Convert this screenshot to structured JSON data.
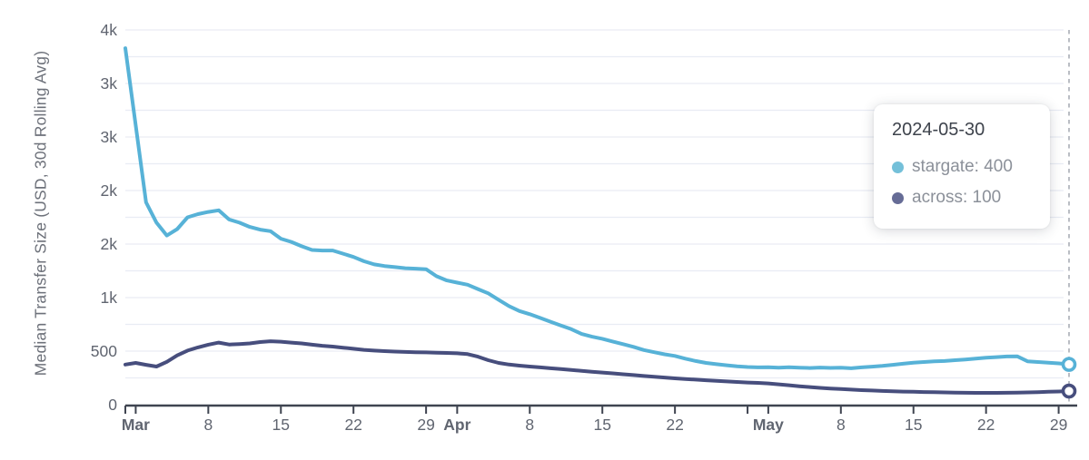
{
  "page": {
    "background": "#ffffff"
  },
  "tooltip": {
    "title": "2024-05-30",
    "rows": [
      {
        "series": "stargate",
        "value": "400",
        "text": "stargate: 400",
        "color": "#74c0d9"
      },
      {
        "series": "across",
        "value": "100",
        "text": "across: 100",
        "color": "#666c96"
      }
    ]
  },
  "chart_data": {
    "type": "line",
    "title": "",
    "xlabel": "",
    "ylabel": "Median Transfer Size (USD, 30d Rolling Avg)",
    "grid": "on",
    "legend_position": "tooltip-overlay",
    "y_max": 3500,
    "y_min": 0,
    "grid_step": 250,
    "y_ticks": [
      {
        "value": 0,
        "label": "0"
      },
      {
        "value": 500,
        "label": "500"
      },
      {
        "value": 1000,
        "label": "1k"
      },
      {
        "value": 1500,
        "label": "2k"
      },
      {
        "value": 2000,
        "label": "2k"
      },
      {
        "value": 2500,
        "label": "3k"
      },
      {
        "value": 3000,
        "label": "3k"
      },
      {
        "value": 3500,
        "label": "4k"
      }
    ],
    "x_ticks": [
      {
        "i": 0,
        "label": "",
        "bold": false
      },
      {
        "i": 1,
        "label": "Mar",
        "bold": true
      },
      {
        "i": 8,
        "label": "8",
        "bold": false
      },
      {
        "i": 15,
        "label": "15",
        "bold": false
      },
      {
        "i": 22,
        "label": "22",
        "bold": false
      },
      {
        "i": 29,
        "label": "29",
        "bold": false
      },
      {
        "i": 32,
        "label": "Apr",
        "bold": true
      },
      {
        "i": 39,
        "label": "8",
        "bold": false
      },
      {
        "i": 46,
        "label": "15",
        "bold": false
      },
      {
        "i": 53,
        "label": "22",
        "bold": false
      },
      {
        "i": 60,
        "label": "",
        "bold": false
      },
      {
        "i": 62,
        "label": "May",
        "bold": true
      },
      {
        "i": 69,
        "label": "8",
        "bold": false
      },
      {
        "i": 76,
        "label": "15",
        "bold": false
      },
      {
        "i": 83,
        "label": "22",
        "bold": false
      },
      {
        "i": 90,
        "label": "29",
        "bold": false
      }
    ],
    "crosshair_date": "2024-05-30",
    "dates": [
      "2024-02-29",
      "2024-03-01",
      "2024-03-02",
      "2024-03-03",
      "2024-03-04",
      "2024-03-05",
      "2024-03-06",
      "2024-03-07",
      "2024-03-08",
      "2024-03-09",
      "2024-03-10",
      "2024-03-11",
      "2024-03-12",
      "2024-03-13",
      "2024-03-14",
      "2024-03-15",
      "2024-03-16",
      "2024-03-17",
      "2024-03-18",
      "2024-03-19",
      "2024-03-20",
      "2024-03-21",
      "2024-03-22",
      "2024-03-23",
      "2024-03-24",
      "2024-03-25",
      "2024-03-26",
      "2024-03-27",
      "2024-03-28",
      "2024-03-29",
      "2024-03-30",
      "2024-03-31",
      "2024-04-01",
      "2024-04-02",
      "2024-04-03",
      "2024-04-04",
      "2024-04-05",
      "2024-04-06",
      "2024-04-07",
      "2024-04-08",
      "2024-04-09",
      "2024-04-10",
      "2024-04-11",
      "2024-04-12",
      "2024-04-13",
      "2024-04-14",
      "2024-04-15",
      "2024-04-16",
      "2024-04-17",
      "2024-04-18",
      "2024-04-19",
      "2024-04-20",
      "2024-04-21",
      "2024-04-22",
      "2024-04-23",
      "2024-04-24",
      "2024-04-25",
      "2024-04-26",
      "2024-04-27",
      "2024-04-28",
      "2024-04-29",
      "2024-04-30",
      "2024-05-01",
      "2024-05-02",
      "2024-05-03",
      "2024-05-04",
      "2024-05-05",
      "2024-05-06",
      "2024-05-07",
      "2024-05-08",
      "2024-05-09",
      "2024-05-10",
      "2024-05-11",
      "2024-05-12",
      "2024-05-13",
      "2024-05-14",
      "2024-05-15",
      "2024-05-16",
      "2024-05-17",
      "2024-05-18",
      "2024-05-19",
      "2024-05-20",
      "2024-05-21",
      "2024-05-22",
      "2024-05-23",
      "2024-05-24",
      "2024-05-25",
      "2024-05-26",
      "2024-05-27",
      "2024-05-28",
      "2024-05-29",
      "2024-05-30"
    ],
    "series": [
      {
        "name": "stargate",
        "color": "#57b2d7",
        "values": [
          3330,
          2610,
          1890,
          1700,
          1580,
          1640,
          1750,
          1780,
          1800,
          1815,
          1730,
          1700,
          1660,
          1635,
          1620,
          1550,
          1520,
          1480,
          1445,
          1440,
          1440,
          1410,
          1380,
          1340,
          1310,
          1295,
          1285,
          1275,
          1270,
          1265,
          1200,
          1160,
          1140,
          1120,
          1080,
          1040,
          980,
          920,
          875,
          845,
          810,
          775,
          740,
          705,
          660,
          635,
          615,
          590,
          565,
          540,
          510,
          490,
          470,
          455,
          430,
          408,
          390,
          378,
          368,
          358,
          352,
          348,
          350,
          345,
          350,
          346,
          342,
          347,
          343,
          345,
          340,
          348,
          355,
          362,
          372,
          382,
          392,
          398,
          404,
          408,
          415,
          422,
          430,
          438,
          444,
          450,
          452,
          405,
          398,
          392,
          386,
          376
        ]
      },
      {
        "name": "across",
        "color": "#474e7d",
        "values": [
          375,
          390,
          372,
          356,
          400,
          460,
          505,
          535,
          560,
          580,
          562,
          566,
          572,
          585,
          592,
          588,
          580,
          572,
          560,
          550,
          542,
          532,
          522,
          512,
          505,
          500,
          496,
          492,
          490,
          488,
          486,
          483,
          480,
          472,
          448,
          415,
          390,
          375,
          364,
          356,
          348,
          340,
          332,
          324,
          316,
          308,
          300,
          292,
          284,
          276,
          268,
          260,
          253,
          246,
          240,
          234,
          228,
          222,
          217,
          212,
          207,
          203,
          198,
          190,
          181,
          172,
          164,
          157,
          151,
          146,
          141,
          136,
          132,
          128,
          125,
          122,
          120,
          118,
          116,
          114,
          112,
          111,
          110,
          110,
          110,
          111,
          112,
          114,
          117,
          120,
          123,
          127
        ]
      }
    ],
    "end_values_displayed": {
      "stargate": "400",
      "across": "100"
    },
    "colors": {
      "grid": "#e9ecf4",
      "axis": "#3f4450",
      "tick_label": "#606570",
      "crosshair": "#a9adb5",
      "marker_fill": "#ffffff"
    }
  }
}
